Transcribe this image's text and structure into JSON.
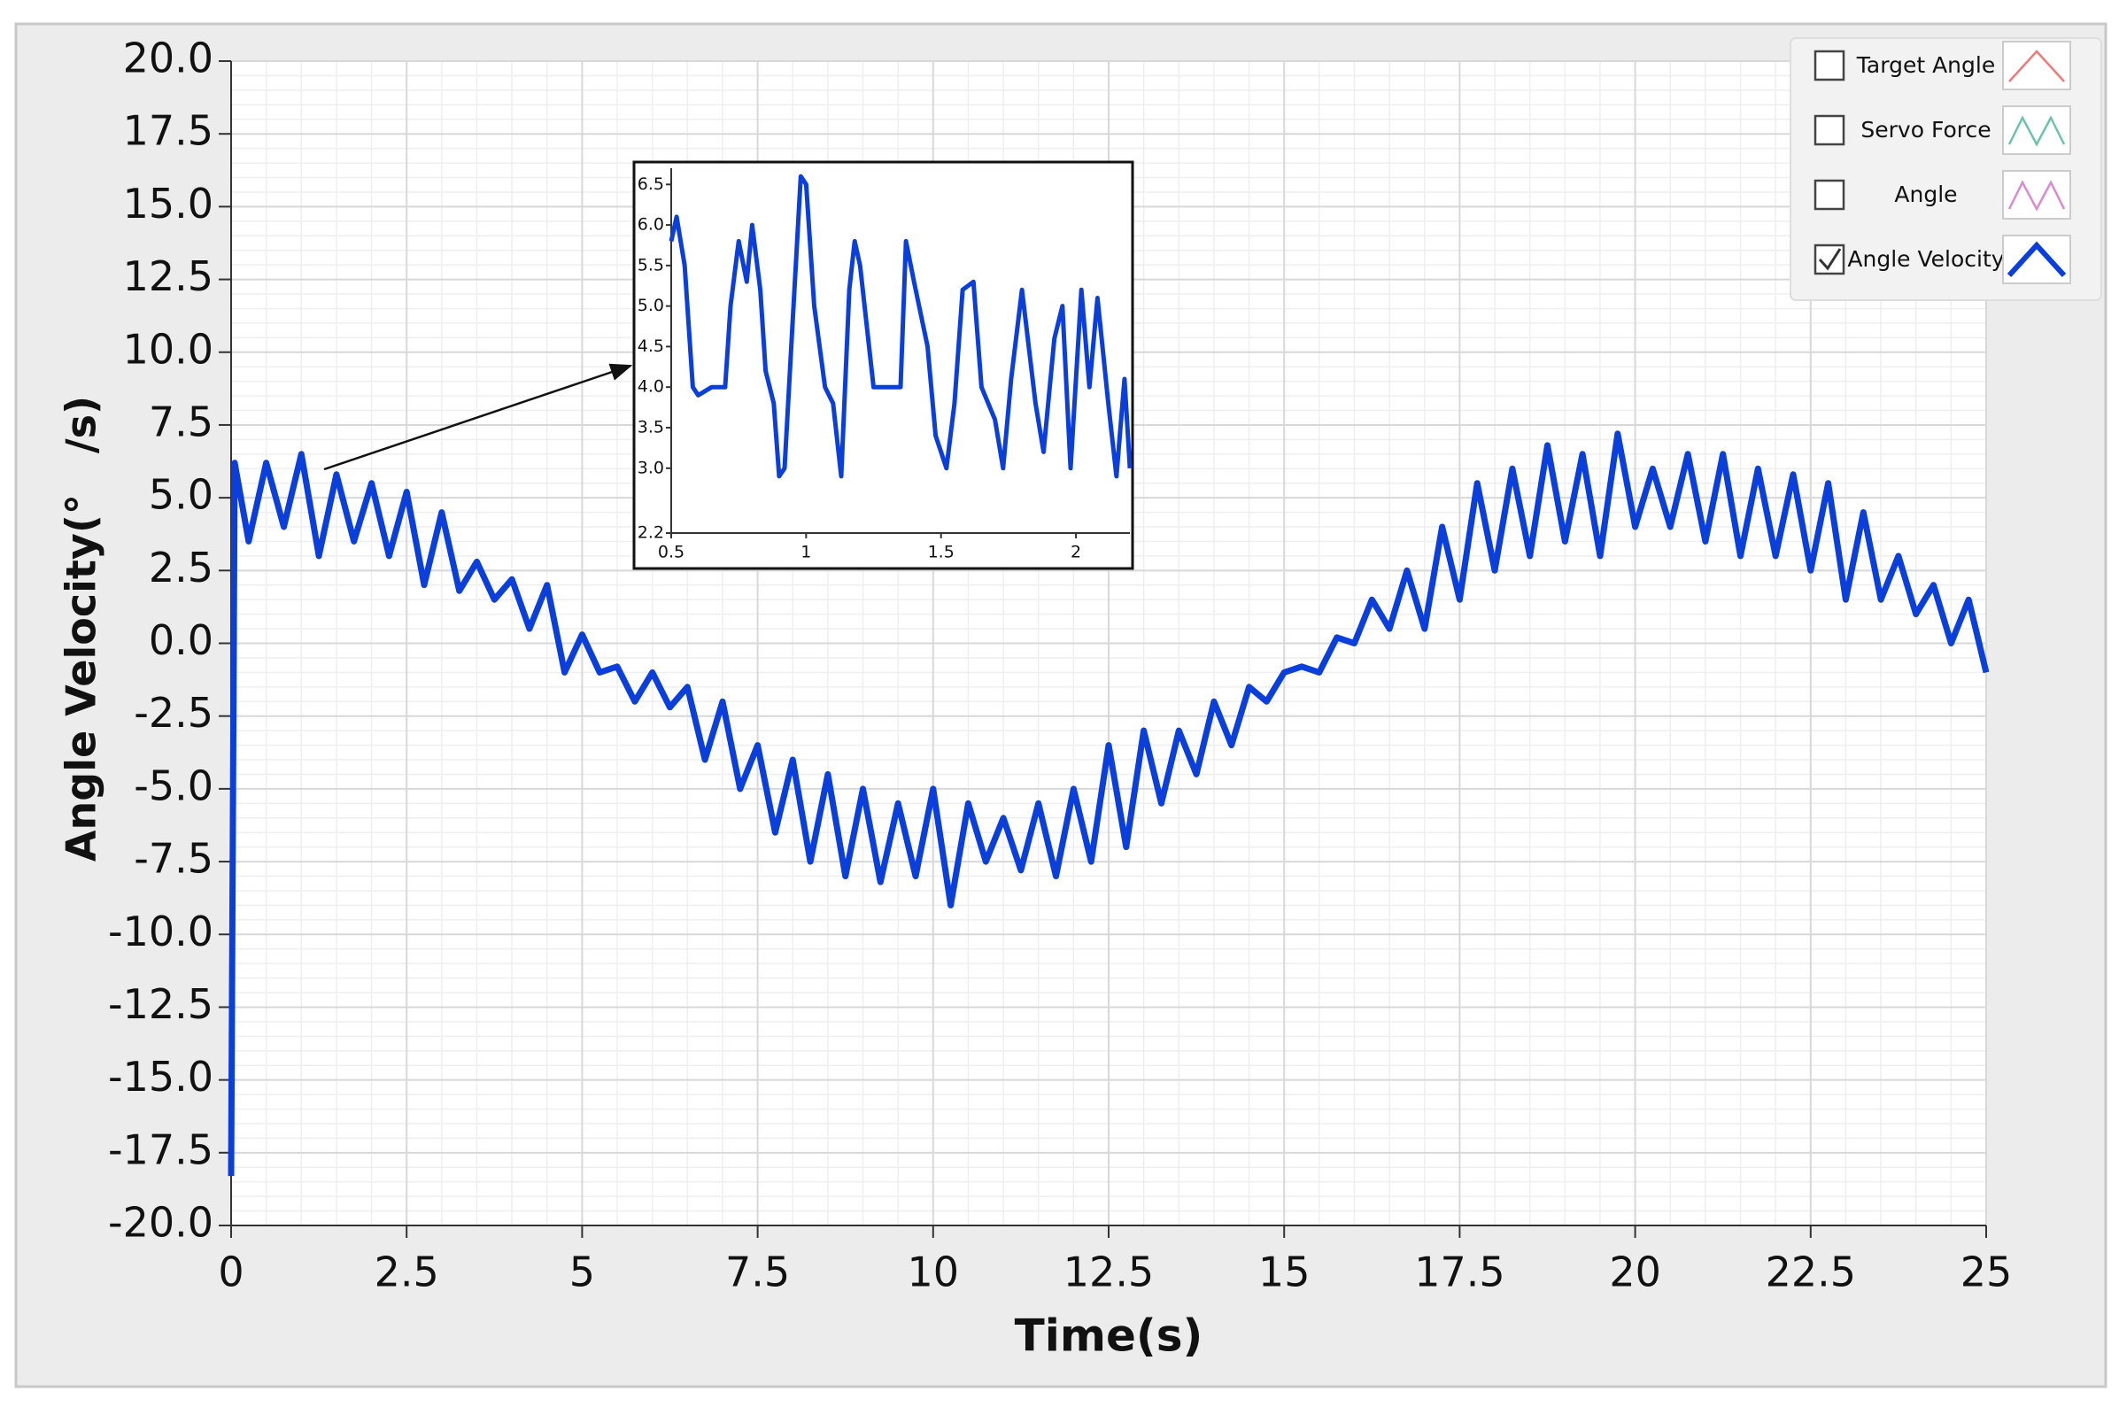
{
  "chart_data": [
    {
      "type": "line",
      "x_label": "Time(s)",
      "y_label": "Angle Velocity(°　/s)",
      "xlim": [
        0,
        25
      ],
      "xticks": [
        0,
        2.5,
        5,
        7.5,
        10,
        12.5,
        15,
        17.5,
        20,
        22.5,
        25
      ],
      "ylim": [
        -20,
        20
      ],
      "yticks": [
        {
          "value": -20,
          "label": "-20.0"
        },
        -17.5,
        {
          "value": -15,
          "label": "-15.0"
        },
        -12.5,
        {
          "value": -10,
          "label": "-10.0"
        },
        -7.5,
        {
          "value": -5,
          "label": "-5.0"
        },
        -2.5,
        {
          "value": 0,
          "label": "0.0"
        },
        2.5,
        {
          "value": 5,
          "label": "5.0"
        },
        7.5,
        {
          "value": 10,
          "label": "10.0"
        },
        12.5,
        {
          "value": 15,
          "label": "15.0"
        },
        17.5,
        {
          "value": 20,
          "label": "20.0"
        }
      ],
      "grid": true,
      "x": [
        0,
        0.05,
        0.25,
        0.5,
        0.75,
        1,
        1.25,
        1.5,
        1.75,
        2,
        2.25,
        2.5,
        2.75,
        3,
        3.25,
        3.5,
        3.75,
        4,
        4.25,
        4.5,
        4.75,
        5,
        5.25,
        5.5,
        5.75,
        6,
        6.25,
        6.5,
        6.75,
        7,
        7.25,
        7.5,
        7.75,
        8,
        8.25,
        8.5,
        8.75,
        9,
        9.25,
        9.5,
        9.75,
        10,
        10.25,
        10.5,
        10.75,
        11,
        11.25,
        11.5,
        11.75,
        12,
        12.25,
        12.5,
        12.75,
        13,
        13.25,
        13.5,
        13.75,
        14,
        14.25,
        14.5,
        14.75,
        15,
        15.25,
        15.5,
        15.75,
        16,
        16.25,
        16.5,
        16.75,
        17,
        17.25,
        17.5,
        17.75,
        18,
        18.25,
        18.5,
        18.75,
        19,
        19.25,
        19.5,
        19.75,
        20,
        20.25,
        20.5,
        20.75,
        21,
        21.25,
        21.5,
        21.75,
        22,
        22.25,
        22.5,
        22.75,
        23,
        23.25,
        23.5,
        23.75,
        24,
        24.25,
        24.5,
        24.75,
        25
      ],
      "series": [
        {
          "color": "#0b3fdc",
          "values": [
            -18.3,
            6.2,
            3.5,
            6.2,
            4.0,
            6.5,
            3.0,
            5.8,
            3.5,
            5.5,
            3.0,
            5.2,
            2.0,
            4.5,
            1.8,
            2.8,
            1.5,
            2.2,
            0.5,
            2.0,
            -1.0,
            0.3,
            -1.0,
            -0.8,
            -2.0,
            -1.0,
            -2.2,
            -1.5,
            -4.0,
            -2.0,
            -5.0,
            -3.5,
            -6.5,
            -4.0,
            -7.5,
            -4.5,
            -8.0,
            -5.0,
            -8.2,
            -5.5,
            -8.0,
            -5.0,
            -9.0,
            -5.5,
            -7.5,
            -6.0,
            -7.8,
            -5.5,
            -8.0,
            -5.0,
            -7.5,
            -3.5,
            -7.0,
            -3.0,
            -5.5,
            -3.0,
            -4.5,
            -2.0,
            -3.5,
            -1.5,
            -2.0,
            -1.0,
            -0.8,
            -1.0,
            0.2,
            0.0,
            1.5,
            0.5,
            2.5,
            0.5,
            4.0,
            1.5,
            5.5,
            2.5,
            6.0,
            3.0,
            6.8,
            3.5,
            6.5,
            3.0,
            7.2,
            4.0,
            6.0,
            4.0,
            6.5,
            3.5,
            6.5,
            3.0,
            6.0,
            3.0,
            5.8,
            2.5,
            5.5,
            1.5,
            4.5,
            1.5,
            3.0,
            1.0,
            2.0,
            0.0,
            1.5,
            -1.0
          ]
        }
      ],
      "legend": {
        "position": "upper right",
        "items": [
          {
            "name": "Target Angle",
            "color": "#f07a7a",
            "checked": false
          },
          {
            "name": "Servo Force",
            "color": "#6cc4a4",
            "checked": false
          },
          {
            "name": "Angle",
            "color": "#d98ad0",
            "checked": false
          },
          {
            "name": "Angle Velocity",
            "color": "#0b3fdc",
            "checked": true
          }
        ]
      }
    },
    {
      "type": "line",
      "xlim": [
        0.5,
        2.2
      ],
      "xticks": [
        0.5,
        1,
        1.5,
        2
      ],
      "ylim": [
        2.2,
        6.7
      ],
      "yticks": [
        2.2,
        {
          "value": 3,
          "label": "3.0"
        },
        3.5,
        {
          "value": 4,
          "label": "4.0"
        },
        4.5,
        {
          "value": 5,
          "label": "5.0"
        },
        5.5,
        {
          "value": 6,
          "label": "6.0"
        },
        6.5
      ],
      "x": [
        0.5,
        0.52,
        0.55,
        0.58,
        0.6,
        0.65,
        0.7,
        0.72,
        0.75,
        0.78,
        0.8,
        0.83,
        0.85,
        0.88,
        0.9,
        0.92,
        0.95,
        0.98,
        1.0,
        1.03,
        1.07,
        1.1,
        1.13,
        1.16,
        1.18,
        1.2,
        1.25,
        1.35,
        1.37,
        1.4,
        1.45,
        1.48,
        1.52,
        1.55,
        1.58,
        1.62,
        1.65,
        1.7,
        1.73,
        1.76,
        1.8,
        1.85,
        1.88,
        1.92,
        1.95,
        1.98,
        2.02,
        2.05,
        2.08,
        2.12,
        2.15,
        2.18,
        2.2
      ],
      "series": [
        {
          "color": "#0b3fdc",
          "values": [
            5.8,
            6.1,
            5.5,
            4.0,
            3.9,
            4.0,
            4.0,
            5.0,
            5.8,
            5.3,
            6.0,
            5.2,
            4.2,
            3.8,
            2.9,
            3.0,
            4.8,
            6.6,
            6.5,
            5.0,
            4.0,
            3.8,
            2.9,
            5.2,
            5.8,
            5.5,
            4.0,
            4.0,
            5.8,
            5.3,
            4.5,
            3.4,
            3.0,
            3.8,
            5.2,
            5.3,
            4.0,
            3.6,
            3.0,
            4.1,
            5.2,
            3.8,
            3.2,
            4.6,
            5.0,
            3.0,
            5.2,
            4.0,
            5.1,
            3.8,
            2.9,
            4.1,
            3.0
          ]
        }
      ]
    }
  ]
}
